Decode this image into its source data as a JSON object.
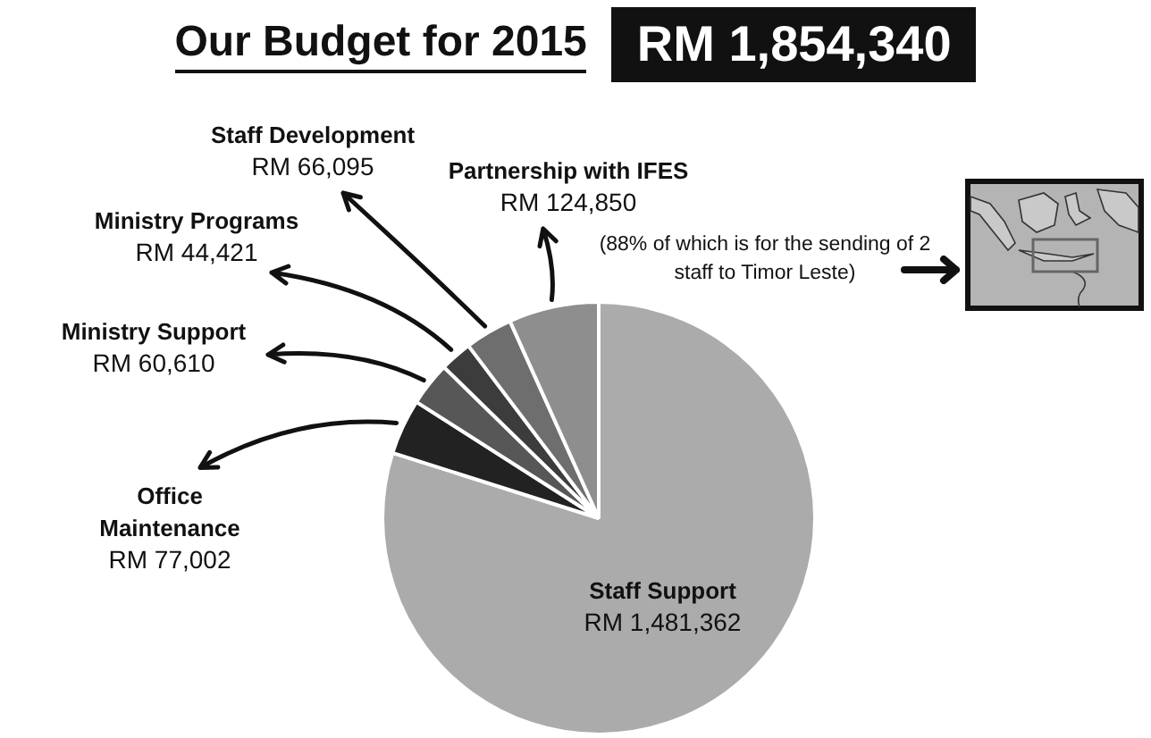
{
  "chart_data": {
    "type": "pie",
    "title": "Our Budget for 2015",
    "subtitle": "RM 1,854,340",
    "categories": [
      "Staff Support",
      "Office Maintenance",
      "Ministry Support",
      "Ministry Programs",
      "Staff Development",
      "Partnership with IFES"
    ],
    "values": [
      1481362,
      77002,
      60610,
      44421,
      66095,
      124850
    ],
    "colors": [
      "#ababab",
      "#222222",
      "#575757",
      "#3c3c3c",
      "#6e6e6e",
      "#8e8e8e"
    ],
    "value_labels": [
      "RM 1,481,362",
      "RM 77,002",
      "RM 60,610",
      "RM 44,421",
      "RM 66,095",
      "RM 124,850"
    ],
    "annotations": [
      "(88% of which is for the sending of 2 staff to Timor Leste)"
    ]
  }
}
